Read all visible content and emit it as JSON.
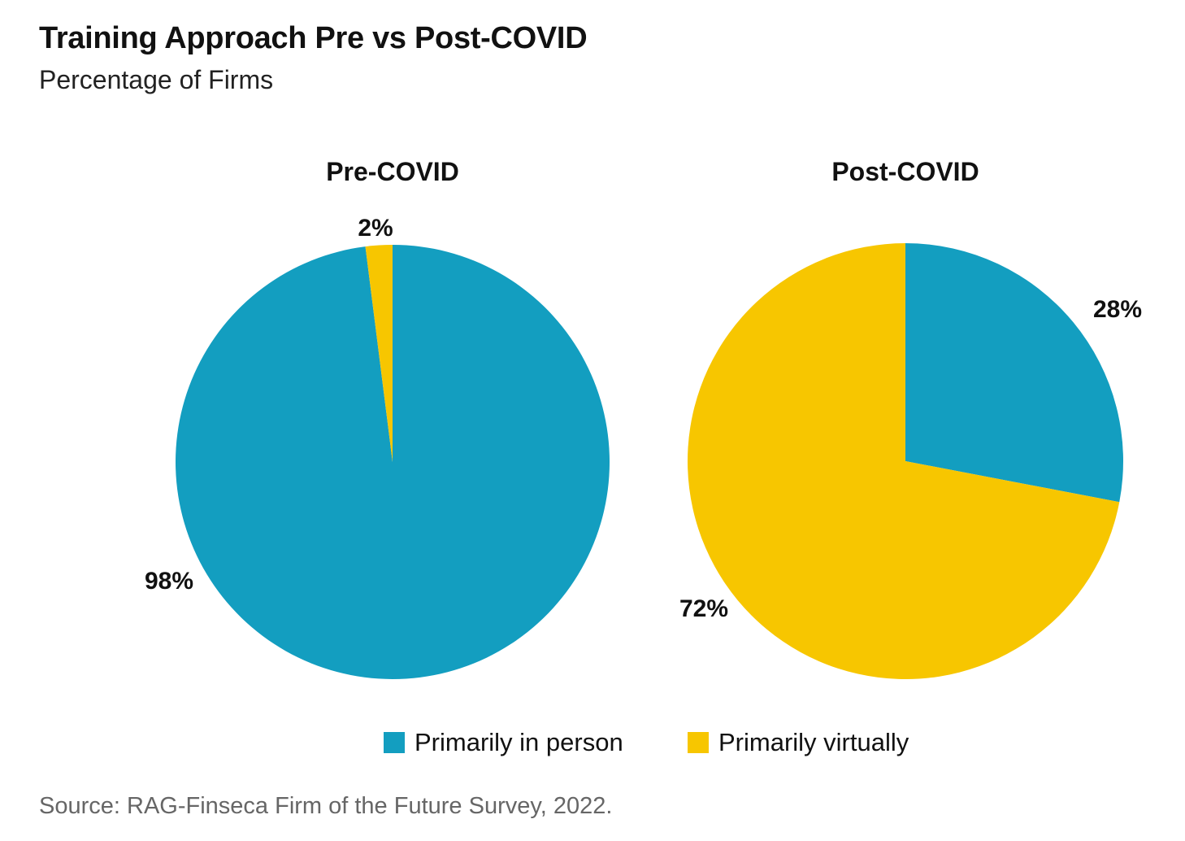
{
  "header": {
    "title": "Training Approach Pre vs Post-COVID",
    "subtitle": "Percentage of Firms"
  },
  "colors": {
    "in_person": "#139ec0",
    "virtually": "#f7c600"
  },
  "chart_data": [
    {
      "type": "pie",
      "title": "Pre-COVID",
      "slices": [
        {
          "name": "Primarily in person",
          "value": 98,
          "label": "98%"
        },
        {
          "name": "Primarily virtually",
          "value": 2,
          "label": "2%"
        }
      ]
    },
    {
      "type": "pie",
      "title": "Post-COVID",
      "slices": [
        {
          "name": "Primarily in person",
          "value": 28,
          "label": "28%"
        },
        {
          "name": "Primarily virtually",
          "value": 72,
          "label": "72%"
        }
      ]
    }
  ],
  "legend": {
    "placement": "bottom-center",
    "items": [
      {
        "label": "Primarily in person",
        "color": "#139ec0"
      },
      {
        "label": "Primarily virtually",
        "color": "#f7c600"
      }
    ]
  },
  "source": "Source: RAG-Finseca Firm of the Future Survey, 2022."
}
